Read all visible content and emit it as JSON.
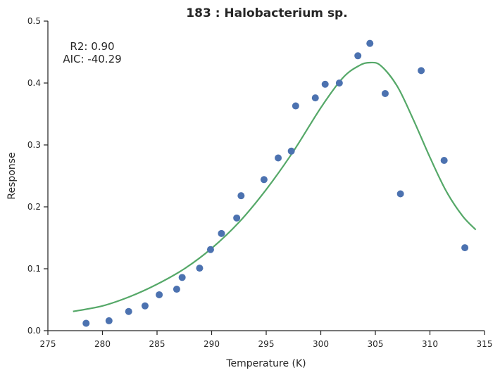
{
  "chart_data": {
    "type": "scatter",
    "title": "183 : Halobacterium sp.",
    "xlabel": "Temperature (K)",
    "ylabel": "Response",
    "xlim": [
      275,
      315
    ],
    "ylim": [
      0,
      0.5
    ],
    "xticks": [
      275,
      280,
      285,
      290,
      295,
      300,
      305,
      310,
      315
    ],
    "yticks": [
      0.0,
      0.1,
      0.2,
      0.3,
      0.4,
      0.5
    ],
    "grid": false,
    "annotation": {
      "r2": "R2: 0.90",
      "aic": "AIC: -40.29"
    },
    "colors": {
      "points": "#4c72b0",
      "fit": "#55a868"
    },
    "series": [
      {
        "type": "scatter",
        "x": [
          278.5,
          280.6,
          282.4,
          283.9,
          285.2,
          286.8,
          287.3,
          288.9,
          289.9,
          290.9,
          292.3,
          292.7,
          294.8,
          296.1,
          297.3,
          297.7,
          299.5,
          300.4,
          301.7,
          303.4,
          304.5,
          305.9,
          307.3,
          309.2,
          311.3,
          313.2
        ],
        "y": [
          0.012,
          0.016,
          0.031,
          0.04,
          0.058,
          0.067,
          0.086,
          0.101,
          0.131,
          0.157,
          0.182,
          0.218,
          0.244,
          0.279,
          0.29,
          0.363,
          0.376,
          0.398,
          0.4,
          0.444,
          0.464,
          0.383,
          0.221,
          0.42,
          0.275,
          0.134
        ]
      },
      {
        "type": "line",
        "x": [
          277.3,
          280,
          282.5,
          285,
          287.5,
          290,
          292.5,
          295,
          297.5,
          300,
          302,
          303.5,
          304.5,
          305.5,
          307,
          308.5,
          310,
          311.5,
          313,
          314.2
        ],
        "y": [
          0.031,
          0.04,
          0.055,
          0.075,
          0.1,
          0.133,
          0.175,
          0.228,
          0.29,
          0.36,
          0.408,
          0.428,
          0.433,
          0.428,
          0.395,
          0.34,
          0.28,
          0.225,
          0.185,
          0.163
        ]
      }
    ]
  }
}
